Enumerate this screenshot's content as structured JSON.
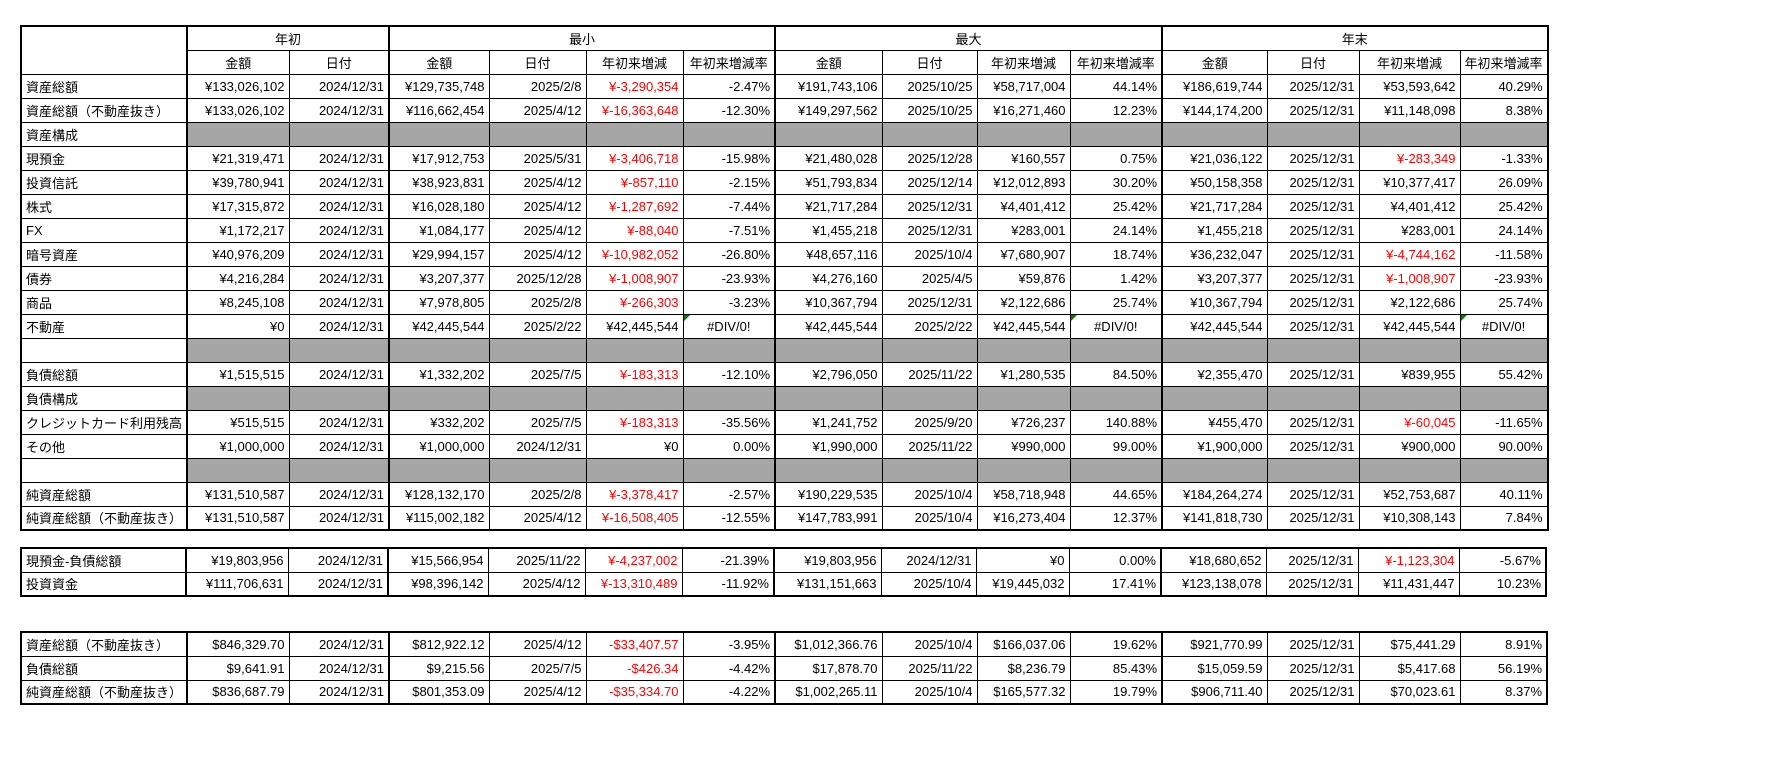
{
  "colors": {
    "section_fill": "#a6a6a6",
    "negative_text": "#ff0000",
    "error_indicator": "#008000",
    "grid_border": "#000000"
  },
  "main_table": {
    "corner_label": "",
    "groups": [
      {
        "label": "年初",
        "span": 2
      },
      {
        "label": "最小",
        "span": 4
      },
      {
        "label": "最大",
        "span": 4
      },
      {
        "label": "年末",
        "span": 4
      }
    ],
    "subheaders": [
      "金額",
      "日付",
      "金額",
      "日付",
      "年初来増減",
      "年初来増減率",
      "金額",
      "日付",
      "年初来増減",
      "年初来増減率",
      "金額",
      "日付",
      "年初来増減",
      "年初来増減率"
    ],
    "rows": [
      {
        "type": "data",
        "label": "資産総額",
        "cells": [
          "¥133,026,102",
          "2024/12/31",
          "¥129,735,748",
          "2025/2/8",
          "¥-3,290,354",
          "-2.47%",
          "¥191,743,106",
          "2025/10/25",
          "¥58,717,004",
          "44.14%",
          "¥186,619,744",
          "2025/12/31",
          "¥53,593,642",
          "40.29%"
        ]
      },
      {
        "type": "data",
        "label": "資産総額（不動産抜き）",
        "cells": [
          "¥133,026,102",
          "2024/12/31",
          "¥116,662,454",
          "2025/4/12",
          "¥-16,363,648",
          "-12.30%",
          "¥149,297,562",
          "2025/10/25",
          "¥16,271,460",
          "12.23%",
          "¥144,174,200",
          "2025/12/31",
          "¥11,148,098",
          "8.38%"
        ]
      },
      {
        "type": "section",
        "label": "資産構成",
        "cells": []
      },
      {
        "type": "data",
        "label": "現預金",
        "cells": [
          "¥21,319,471",
          "2024/12/31",
          "¥17,912,753",
          "2025/5/31",
          "¥-3,406,718",
          "-15.98%",
          "¥21,480,028",
          "2025/12/28",
          "¥160,557",
          "0.75%",
          "¥21,036,122",
          "2025/12/31",
          "¥-283,349",
          "-1.33%"
        ]
      },
      {
        "type": "data",
        "label": "投資信託",
        "cells": [
          "¥39,780,941",
          "2024/12/31",
          "¥38,923,831",
          "2025/4/12",
          "¥-857,110",
          "-2.15%",
          "¥51,793,834",
          "2025/12/14",
          "¥12,012,893",
          "30.20%",
          "¥50,158,358",
          "2025/12/31",
          "¥10,377,417",
          "26.09%"
        ]
      },
      {
        "type": "data",
        "label": "株式",
        "cells": [
          "¥17,315,872",
          "2024/12/31",
          "¥16,028,180",
          "2025/4/12",
          "¥-1,287,692",
          "-7.44%",
          "¥21,717,284",
          "2025/12/31",
          "¥4,401,412",
          "25.42%",
          "¥21,717,284",
          "2025/12/31",
          "¥4,401,412",
          "25.42%"
        ]
      },
      {
        "type": "data",
        "label": "FX",
        "cells": [
          "¥1,172,217",
          "2024/12/31",
          "¥1,084,177",
          "2025/4/12",
          "¥-88,040",
          "-7.51%",
          "¥1,455,218",
          "2025/12/31",
          "¥283,001",
          "24.14%",
          "¥1,455,218",
          "2025/12/31",
          "¥283,001",
          "24.14%"
        ]
      },
      {
        "type": "data",
        "label": "暗号資産",
        "cells": [
          "¥40,976,209",
          "2024/12/31",
          "¥29,994,157",
          "2025/4/12",
          "¥-10,982,052",
          "-26.80%",
          "¥48,657,116",
          "2025/10/4",
          "¥7,680,907",
          "18.74%",
          "¥36,232,047",
          "2025/12/31",
          "¥-4,744,162",
          "-11.58%"
        ]
      },
      {
        "type": "data",
        "label": "債券",
        "cells": [
          "¥4,216,284",
          "2024/12/31",
          "¥3,207,377",
          "2025/12/28",
          "¥-1,008,907",
          "-23.93%",
          "¥4,276,160",
          "2025/4/5",
          "¥59,876",
          "1.42%",
          "¥3,207,377",
          "2025/12/31",
          "¥-1,008,907",
          "-23.93%"
        ]
      },
      {
        "type": "data",
        "label": "商品",
        "cells": [
          "¥8,245,108",
          "2024/12/31",
          "¥7,978,805",
          "2025/2/8",
          "¥-266,303",
          "-3.23%",
          "¥10,367,794",
          "2025/12/31",
          "¥2,122,686",
          "25.74%",
          "¥10,367,794",
          "2025/12/31",
          "¥2,122,686",
          "25.74%"
        ]
      },
      {
        "type": "data",
        "label": "不動産",
        "cells": [
          "¥0",
          "2024/12/31",
          "¥42,445,544",
          "2025/2/22",
          "¥42,445,544",
          "#DIV/0!",
          "¥42,445,544",
          "2025/2/22",
          "¥42,445,544",
          "#DIV/0!",
          "¥42,445,544",
          "2025/12/31",
          "¥42,445,544",
          "#DIV/0!"
        ]
      },
      {
        "type": "spacer",
        "label": "",
        "cells": []
      },
      {
        "type": "data",
        "label": "負債総額",
        "cells": [
          "¥1,515,515",
          "2024/12/31",
          "¥1,332,202",
          "2025/7/5",
          "¥-183,313",
          "-12.10%",
          "¥2,796,050",
          "2025/11/22",
          "¥1,280,535",
          "84.50%",
          "¥2,355,470",
          "2025/12/31",
          "¥839,955",
          "55.42%"
        ]
      },
      {
        "type": "section",
        "label": "負債構成",
        "cells": []
      },
      {
        "type": "data",
        "label": "クレジットカード利用残高",
        "cells": [
          "¥515,515",
          "2024/12/31",
          "¥332,202",
          "2025/7/5",
          "¥-183,313",
          "-35.56%",
          "¥1,241,752",
          "2025/9/20",
          "¥726,237",
          "140.88%",
          "¥455,470",
          "2025/12/31",
          "¥-60,045",
          "-11.65%"
        ]
      },
      {
        "type": "data",
        "label": "その他",
        "cells": [
          "¥1,000,000",
          "2024/12/31",
          "¥1,000,000",
          "2024/12/31",
          "¥0",
          "0.00%",
          "¥1,990,000",
          "2025/11/22",
          "¥990,000",
          "99.00%",
          "¥1,900,000",
          "2025/12/31",
          "¥900,000",
          "90.00%"
        ]
      },
      {
        "type": "spacer",
        "label": "",
        "cells": []
      },
      {
        "type": "data",
        "label": "純資産総額",
        "cells": [
          "¥131,510,587",
          "2024/12/31",
          "¥128,132,170",
          "2025/2/8",
          "¥-3,378,417",
          "-2.57%",
          "¥190,229,535",
          "2025/10/4",
          "¥58,718,948",
          "44.65%",
          "¥184,264,274",
          "2025/12/31",
          "¥52,753,687",
          "40.11%"
        ]
      },
      {
        "type": "data",
        "label": "純資産総額（不動産抜き）",
        "cells": [
          "¥131,510,587",
          "2024/12/31",
          "¥115,002,182",
          "2025/4/12",
          "¥-16,508,405",
          "-12.55%",
          "¥147,783,991",
          "2025/10/4",
          "¥16,273,404",
          "12.37%",
          "¥141,818,730",
          "2025/12/31",
          "¥10,308,143",
          "7.84%"
        ]
      }
    ]
  },
  "cash_table": {
    "rows": [
      {
        "type": "data",
        "label": "現預金-負債総額",
        "cells": [
          "¥19,803,956",
          "2024/12/31",
          "¥15,566,954",
          "2025/11/22",
          "¥-4,237,002",
          "-21.39%",
          "¥19,803,956",
          "2024/12/31",
          "¥0",
          "0.00%",
          "¥18,680,652",
          "2025/12/31",
          "¥-1,123,304",
          "-5.67%"
        ]
      },
      {
        "type": "data",
        "label": "投資資金",
        "cells": [
          "¥111,706,631",
          "2024/12/31",
          "¥98,396,142",
          "2025/4/12",
          "¥-13,310,489",
          "-11.92%",
          "¥131,151,663",
          "2025/10/4",
          "¥19,445,032",
          "17.41%",
          "¥123,138,078",
          "2025/12/31",
          "¥11,431,447",
          "10.23%"
        ]
      }
    ]
  },
  "usd_table": {
    "rows": [
      {
        "type": "data",
        "label": "資産総額（不動産抜き）",
        "cells": [
          "$846,329.70",
          "2024/12/31",
          "$812,922.12",
          "2025/4/12",
          "-$33,407.57",
          "-3.95%",
          "$1,012,366.76",
          "2025/10/4",
          "$166,037.06",
          "19.62%",
          "$921,770.99",
          "2025/12/31",
          "$75,441.29",
          "8.91%"
        ]
      },
      {
        "type": "data",
        "label": "負債総額",
        "cells": [
          "$9,641.91",
          "2024/12/31",
          "$9,215.56",
          "2025/7/5",
          "-$426.34",
          "-4.42%",
          "$17,878.70",
          "2025/11/22",
          "$8,236.79",
          "85.43%",
          "$15,059.59",
          "2025/12/31",
          "$5,417.68",
          "56.19%"
        ]
      },
      {
        "type": "data",
        "label": "純資産総額（不動産抜き）",
        "cells": [
          "$836,687.79",
          "2024/12/31",
          "$801,353.09",
          "2025/4/12",
          "-$35,334.70",
          "-4.22%",
          "$1,002,265.11",
          "2025/10/4",
          "$165,577.32",
          "19.79%",
          "$906,711.40",
          "2025/12/31",
          "$70,023.61",
          "8.37%"
        ]
      }
    ]
  }
}
